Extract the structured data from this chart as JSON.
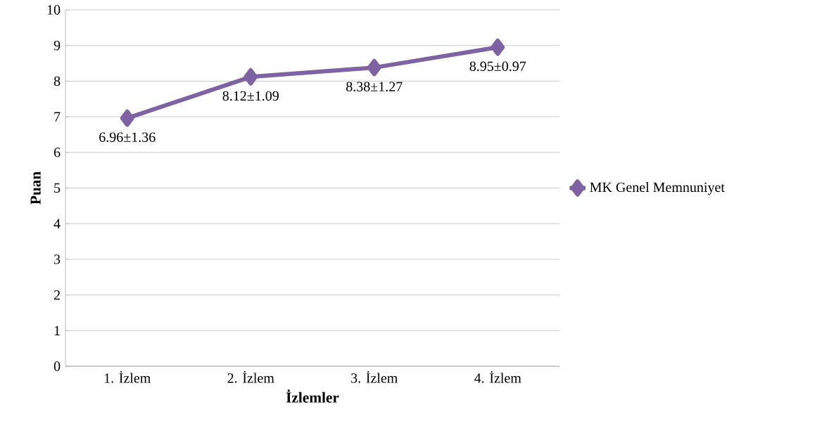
{
  "chart_data": {
    "type": "line",
    "xlabel": "İzlemler",
    "ylabel": "Puan",
    "categories": [
      "1. İzlem",
      "2. İzlem",
      "3. İzlem",
      "4. İzlem"
    ],
    "series": [
      {
        "name": "MK Genel Memnuniyet",
        "color": "#7f62a3",
        "values": [
          6.96,
          8.12,
          8.38,
          8.95
        ],
        "value_labels": [
          "6.96±1.36",
          "8.12±1.09",
          "8.38±1.27",
          "8.95±0.97"
        ]
      }
    ],
    "ylim": [
      0,
      10
    ],
    "yticks": [
      0,
      1,
      2,
      3,
      4,
      5,
      6,
      7,
      8,
      9,
      10
    ],
    "grid": "y",
    "legend": "right",
    "marker": "diamond",
    "line_style": "solid"
  }
}
